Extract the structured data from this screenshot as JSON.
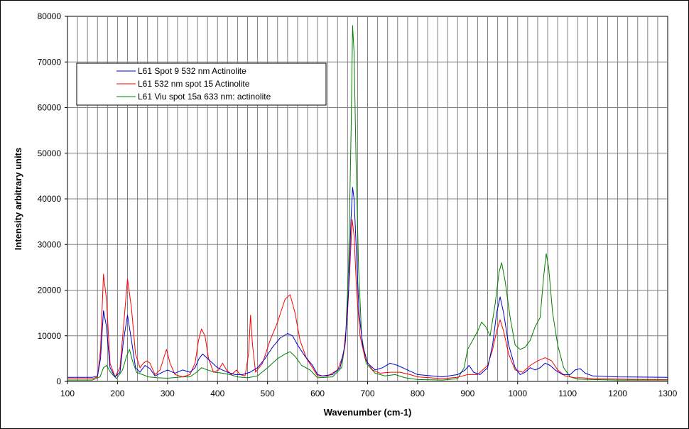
{
  "chart_data": {
    "type": "line",
    "title": "",
    "xlabel": "Wavenumber (cm-1)",
    "ylabel": "Intensity arbitrary units",
    "xlim": [
      100,
      1300
    ],
    "ylim": [
      0,
      80000
    ],
    "xticks": [
      100,
      200,
      300,
      400,
      500,
      600,
      700,
      800,
      900,
      1000,
      1100,
      1200,
      1300
    ],
    "yticks": [
      0,
      10000,
      20000,
      30000,
      40000,
      50000,
      60000,
      70000,
      80000
    ],
    "grid": true,
    "legend_position": "top-left",
    "series": [
      {
        "name": "L61 Spot 9 532 nm Actinolite",
        "color": "#0000cc",
        "points": [
          [
            100,
            900
          ],
          [
            150,
            900
          ],
          [
            160,
            1200
          ],
          [
            166,
            5000
          ],
          [
            172,
            15500
          ],
          [
            178,
            12000
          ],
          [
            185,
            3000
          ],
          [
            195,
            1000
          ],
          [
            205,
            2000
          ],
          [
            212,
            9000
          ],
          [
            220,
            14500
          ],
          [
            228,
            9000
          ],
          [
            236,
            3000
          ],
          [
            245,
            2000
          ],
          [
            255,
            3500
          ],
          [
            265,
            2800
          ],
          [
            275,
            1200
          ],
          [
            290,
            2000
          ],
          [
            300,
            2500
          ],
          [
            315,
            1800
          ],
          [
            330,
            2500
          ],
          [
            345,
            2000
          ],
          [
            355,
            3000
          ],
          [
            363,
            5000
          ],
          [
            370,
            6000
          ],
          [
            380,
            5000
          ],
          [
            390,
            4000
          ],
          [
            400,
            3000
          ],
          [
            410,
            2500
          ],
          [
            420,
            2000
          ],
          [
            435,
            1500
          ],
          [
            450,
            1500
          ],
          [
            465,
            2000
          ],
          [
            480,
            3000
          ],
          [
            495,
            5000
          ],
          [
            510,
            7500
          ],
          [
            525,
            9500
          ],
          [
            540,
            10500
          ],
          [
            550,
            10000
          ],
          [
            560,
            8000
          ],
          [
            575,
            5500
          ],
          [
            590,
            3500
          ],
          [
            600,
            1500
          ],
          [
            610,
            1200
          ],
          [
            630,
            1500
          ],
          [
            645,
            3000
          ],
          [
            655,
            8000
          ],
          [
            662,
            20000
          ],
          [
            667,
            36000
          ],
          [
            670,
            42500
          ],
          [
            673,
            40000
          ],
          [
            677,
            30000
          ],
          [
            683,
            15000
          ],
          [
            690,
            8000
          ],
          [
            700,
            4000
          ],
          [
            715,
            2500
          ],
          [
            730,
            3000
          ],
          [
            745,
            4000
          ],
          [
            760,
            3500
          ],
          [
            780,
            2500
          ],
          [
            800,
            1500
          ],
          [
            850,
            1000
          ],
          [
            880,
            1500
          ],
          [
            895,
            2500
          ],
          [
            903,
            3500
          ],
          [
            912,
            2000
          ],
          [
            925,
            1500
          ],
          [
            940,
            3000
          ],
          [
            950,
            8000
          ],
          [
            958,
            15000
          ],
          [
            965,
            18500
          ],
          [
            972,
            15000
          ],
          [
            982,
            8000
          ],
          [
            995,
            3000
          ],
          [
            1005,
            1500
          ],
          [
            1015,
            2000
          ],
          [
            1025,
            3000
          ],
          [
            1035,
            2500
          ],
          [
            1045,
            3000
          ],
          [
            1055,
            4000
          ],
          [
            1065,
            3500
          ],
          [
            1075,
            2500
          ],
          [
            1090,
            1500
          ],
          [
            1105,
            1500
          ],
          [
            1115,
            2500
          ],
          [
            1125,
            2800
          ],
          [
            1135,
            1800
          ],
          [
            1150,
            1200
          ],
          [
            1200,
            1000
          ],
          [
            1300,
            900
          ]
        ]
      },
      {
        "name": "L61 532 nm spot 15 Actinolite",
        "color": "#ff0000",
        "points": [
          [
            100,
            600
          ],
          [
            150,
            600
          ],
          [
            160,
            1000
          ],
          [
            166,
            7000
          ],
          [
            172,
            23500
          ],
          [
            178,
            18000
          ],
          [
            185,
            4000
          ],
          [
            195,
            1000
          ],
          [
            205,
            3000
          ],
          [
            212,
            12000
          ],
          [
            220,
            22500
          ],
          [
            228,
            16000
          ],
          [
            236,
            6000
          ],
          [
            245,
            3000
          ],
          [
            252,
            4000
          ],
          [
            258,
            4500
          ],
          [
            265,
            4000
          ],
          [
            275,
            1500
          ],
          [
            285,
            2500
          ],
          [
            292,
            5000
          ],
          [
            298,
            7000
          ],
          [
            305,
            4000
          ],
          [
            315,
            1500
          ],
          [
            330,
            1000
          ],
          [
            345,
            1500
          ],
          [
            355,
            4000
          ],
          [
            362,
            9000
          ],
          [
            368,
            11500
          ],
          [
            375,
            10000
          ],
          [
            382,
            5000
          ],
          [
            392,
            2000
          ],
          [
            402,
            2500
          ],
          [
            410,
            4000
          ],
          [
            418,
            2500
          ],
          [
            428,
            1500
          ],
          [
            438,
            2500
          ],
          [
            445,
            1500
          ],
          [
            455,
            1200
          ],
          [
            462,
            6000
          ],
          [
            466,
            14500
          ],
          [
            470,
            8000
          ],
          [
            476,
            2000
          ],
          [
            490,
            4000
          ],
          [
            505,
            9000
          ],
          [
            520,
            13000
          ],
          [
            535,
            18000
          ],
          [
            545,
            19000
          ],
          [
            555,
            15000
          ],
          [
            565,
            9000
          ],
          [
            578,
            5000
          ],
          [
            590,
            3000
          ],
          [
            600,
            1200
          ],
          [
            620,
            1200
          ],
          [
            640,
            2500
          ],
          [
            652,
            6000
          ],
          [
            660,
            15000
          ],
          [
            665,
            26000
          ],
          [
            669,
            35500
          ],
          [
            673,
            32000
          ],
          [
            678,
            20000
          ],
          [
            685,
            10000
          ],
          [
            695,
            5000
          ],
          [
            710,
            2500
          ],
          [
            725,
            1800
          ],
          [
            745,
            2000
          ],
          [
            765,
            2000
          ],
          [
            785,
            1500
          ],
          [
            800,
            1000
          ],
          [
            850,
            600
          ],
          [
            880,
            900
          ],
          [
            900,
            1500
          ],
          [
            920,
            1500
          ],
          [
            940,
            3500
          ],
          [
            950,
            7000
          ],
          [
            958,
            11000
          ],
          [
            965,
            13500
          ],
          [
            972,
            11000
          ],
          [
            982,
            6000
          ],
          [
            995,
            2500
          ],
          [
            1010,
            2000
          ],
          [
            1025,
            3500
          ],
          [
            1040,
            4500
          ],
          [
            1055,
            5200
          ],
          [
            1068,
            4500
          ],
          [
            1080,
            2500
          ],
          [
            1095,
            1200
          ],
          [
            1115,
            800
          ],
          [
            1130,
            800
          ],
          [
            1150,
            600
          ],
          [
            1200,
            500
          ],
          [
            1300,
            400
          ]
        ]
      },
      {
        "name": "L61 Viu  spot 15a 633 nm: actinolite",
        "color": "#008000",
        "points": [
          [
            100,
            300
          ],
          [
            150,
            300
          ],
          [
            165,
            1000
          ],
          [
            172,
            3000
          ],
          [
            178,
            3500
          ],
          [
            186,
            2000
          ],
          [
            198,
            600
          ],
          [
            210,
            2500
          ],
          [
            218,
            5500
          ],
          [
            224,
            7000
          ],
          [
            230,
            4500
          ],
          [
            238,
            2000
          ],
          [
            250,
            1500
          ],
          [
            262,
            1000
          ],
          [
            280,
            800
          ],
          [
            300,
            700
          ],
          [
            330,
            1000
          ],
          [
            345,
            1000
          ],
          [
            358,
            2000
          ],
          [
            368,
            3000
          ],
          [
            380,
            2500
          ],
          [
            395,
            2000
          ],
          [
            410,
            1800
          ],
          [
            425,
            1500
          ],
          [
            440,
            1000
          ],
          [
            460,
            800
          ],
          [
            480,
            1200
          ],
          [
            500,
            3000
          ],
          [
            520,
            5000
          ],
          [
            535,
            6000
          ],
          [
            545,
            6500
          ],
          [
            555,
            5500
          ],
          [
            568,
            3500
          ],
          [
            585,
            2500
          ],
          [
            600,
            800
          ],
          [
            630,
            1000
          ],
          [
            648,
            3000
          ],
          [
            656,
            9000
          ],
          [
            662,
            25000
          ],
          [
            667,
            55000
          ],
          [
            670,
            78000
          ],
          [
            673,
            72000
          ],
          [
            677,
            48000
          ],
          [
            682,
            25000
          ],
          [
            688,
            10000
          ],
          [
            697,
            4000
          ],
          [
            715,
            1800
          ],
          [
            735,
            1200
          ],
          [
            755,
            1500
          ],
          [
            775,
            800
          ],
          [
            800,
            400
          ],
          [
            850,
            300
          ],
          [
            880,
            600
          ],
          [
            893,
            3000
          ],
          [
            900,
            7000
          ],
          [
            910,
            9000
          ],
          [
            920,
            11000
          ],
          [
            928,
            13000
          ],
          [
            936,
            12000
          ],
          [
            945,
            10000
          ],
          [
            955,
            17000
          ],
          [
            963,
            24000
          ],
          [
            968,
            26000
          ],
          [
            975,
            22000
          ],
          [
            985,
            14000
          ],
          [
            995,
            8000
          ],
          [
            1005,
            7000
          ],
          [
            1015,
            7500
          ],
          [
            1025,
            9000
          ],
          [
            1035,
            12000
          ],
          [
            1045,
            14000
          ],
          [
            1052,
            23000
          ],
          [
            1057,
            28000
          ],
          [
            1062,
            25000
          ],
          [
            1070,
            15000
          ],
          [
            1080,
            8000
          ],
          [
            1092,
            3000
          ],
          [
            1105,
            1000
          ],
          [
            1120,
            500
          ],
          [
            1150,
            400
          ],
          [
            1200,
            300
          ],
          [
            1300,
            300
          ]
        ]
      }
    ]
  }
}
